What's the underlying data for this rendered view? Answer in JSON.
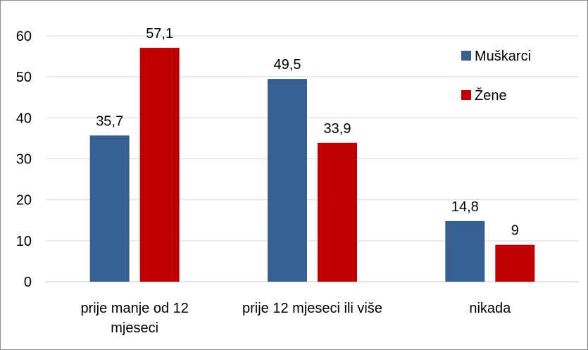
{
  "chart_data": {
    "type": "bar",
    "categories": [
      "prije manje od 12 mjeseci",
      "prije 12 mjeseci ili više",
      "nikada"
    ],
    "category_label_lines": [
      [
        "prije manje od 12",
        "mjeseci"
      ],
      [
        "prije 12 mjeseci ili više"
      ],
      [
        "nikada"
      ]
    ],
    "series": [
      {
        "name": "Muškarci",
        "values": [
          35.7,
          49.5,
          14.8
        ],
        "labels": [
          "35,7",
          "49,5",
          "14,8"
        ],
        "color": "#376092"
      },
      {
        "name": "Žene",
        "values": [
          57.1,
          33.9,
          9
        ],
        "labels": [
          "57,1",
          "33,9",
          "9"
        ],
        "color": "#c00000"
      }
    ],
    "ylim": [
      0,
      60
    ],
    "yticks": [
      0,
      10,
      20,
      30,
      40,
      50,
      60
    ],
    "grid": true,
    "legend_position": "top-right",
    "title": "",
    "xlabel": "",
    "ylabel": ""
  }
}
